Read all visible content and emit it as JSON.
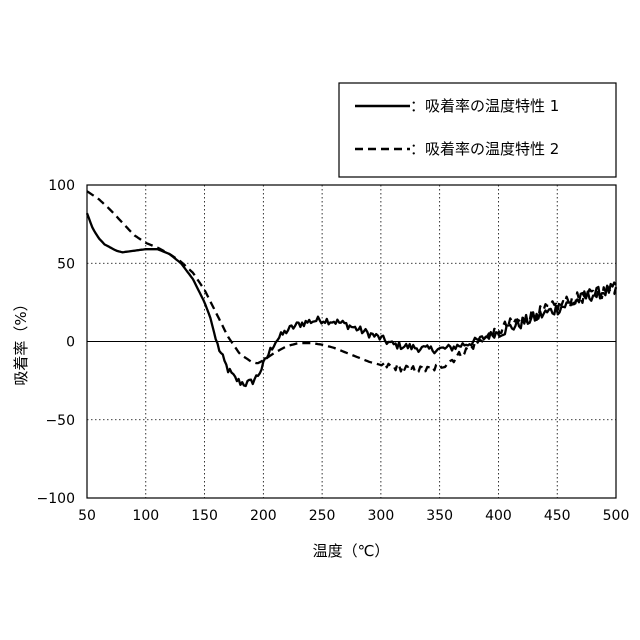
{
  "chart_data": {
    "type": "line",
    "title": "",
    "xlabel": "温度（℃）",
    "ylabel": "吸着率（%）",
    "xlim": [
      50,
      500
    ],
    "ylim": [
      -100,
      100
    ],
    "x_ticks": [
      50,
      100,
      150,
      200,
      250,
      300,
      350,
      400,
      450,
      500
    ],
    "y_ticks": [
      100,
      50,
      0,
      -50,
      -100
    ],
    "x_tick_labels": [
      "50",
      "100",
      "150",
      "200",
      "250",
      "300",
      "350",
      "400",
      "450",
      "500"
    ],
    "y_tick_labels": [
      "100",
      "50",
      "0",
      "−50",
      "−100"
    ],
    "grid": true,
    "grid_style": "dotted",
    "zero_line": true,
    "legend_position": "top-right",
    "series": [
      {
        "name": "：吸着率の温度特性 1",
        "line_style": "solid",
        "noisy_from_x": 160,
        "x": [
          50,
          55,
          60,
          65,
          70,
          75,
          80,
          90,
          100,
          110,
          120,
          130,
          140,
          150,
          155,
          160,
          165,
          170,
          175,
          180,
          185,
          190,
          195,
          200,
          205,
          210,
          220,
          230,
          240,
          250,
          260,
          270,
          280,
          290,
          300,
          310,
          320,
          330,
          340,
          350,
          360,
          370,
          380,
          390,
          400,
          410,
          420,
          430,
          440,
          450,
          460,
          470,
          480,
          490,
          500
        ],
        "y": [
          82,
          72,
          66,
          62,
          60,
          58,
          57,
          58,
          59,
          59,
          56,
          50,
          40,
          25,
          15,
          0,
          -10,
          -18,
          -23,
          -26,
          -27,
          -26,
          -22,
          -15,
          -7,
          0,
          7,
          11,
          13,
          14,
          13,
          11,
          8,
          5,
          2,
          -2,
          -3,
          -4,
          -5,
          -5,
          -4,
          -2,
          0,
          3,
          6,
          9,
          12,
          15,
          18,
          21,
          24,
          27,
          30,
          32,
          34
        ]
      },
      {
        "name": "：吸着率の温度特性 2",
        "line_style": "dashed",
        "noisy_from_x": 300,
        "x": [
          50,
          60,
          70,
          80,
          90,
          100,
          110,
          120,
          130,
          140,
          150,
          160,
          170,
          180,
          190,
          195,
          200,
          210,
          220,
          230,
          240,
          250,
          260,
          270,
          280,
          290,
          300,
          310,
          320,
          330,
          340,
          350,
          360,
          370,
          380,
          390,
          400,
          410,
          420,
          430,
          440,
          450,
          460,
          470,
          480,
          490,
          500
        ],
        "y": [
          96,
          91,
          84,
          76,
          68,
          63,
          60,
          56,
          51,
          44,
          33,
          18,
          3,
          -8,
          -13,
          -14,
          -12,
          -7,
          -3,
          -1,
          -1,
          -2,
          -4,
          -7,
          -10,
          -13,
          -15,
          -16,
          -17,
          -18,
          -18,
          -16,
          -12,
          -7,
          -2,
          3,
          7,
          11,
          14,
          17,
          20,
          23,
          26,
          28,
          30,
          32,
          34
        ]
      }
    ]
  }
}
